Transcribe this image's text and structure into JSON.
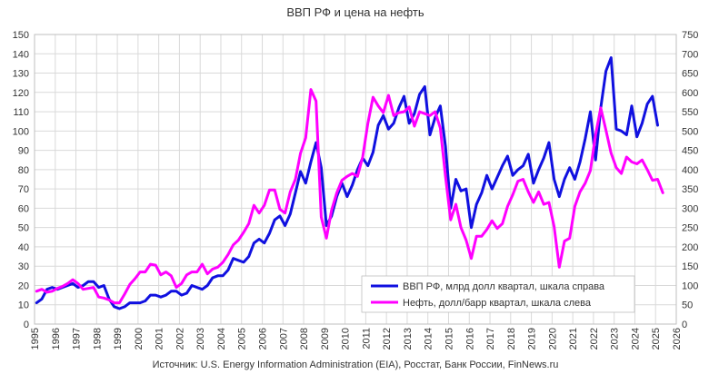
{
  "chart_data": {
    "type": "line",
    "title": "ВВП РФ и цена на нефть",
    "source": "Источник: U.S. Energy Information Administration (EIA), Росстат, Банк России, FinNews.ru",
    "grid": true,
    "legend_position": "bottom-right",
    "x_axis": {
      "ticks": [
        "1995",
        "1996",
        "1997",
        "1998",
        "1999",
        "2000",
        "2001",
        "2002",
        "2003",
        "2004",
        "2005",
        "2006",
        "2007",
        "2008",
        "2009",
        "2010",
        "2011",
        "2012",
        "2013",
        "2014",
        "2015",
        "2016",
        "2017",
        "2018",
        "2019",
        "2020",
        "2021",
        "2022",
        "2023",
        "2024",
        "2025",
        "2026"
      ],
      "range": [
        1995,
        2026
      ]
    },
    "y_left": {
      "ticks": [
        "0",
        "10",
        "20",
        "30",
        "40",
        "50",
        "60",
        "70",
        "80",
        "90",
        "100",
        "110",
        "120",
        "130",
        "140",
        "150"
      ],
      "range": [
        0,
        150
      ]
    },
    "y_right": {
      "ticks": [
        "0",
        "50",
        "100",
        "150",
        "200",
        "250",
        "300",
        "350",
        "400",
        "450",
        "500",
        "550",
        "600",
        "650",
        "700",
        "750"
      ],
      "range": [
        0,
        750
      ]
    },
    "series": [
      {
        "name": "ВВП РФ, млрд долл квартал, шкала справа",
        "axis": "right",
        "color": "#1010e0",
        "points": [
          [
            1995.1,
            55
          ],
          [
            1995.35,
            65
          ],
          [
            1995.6,
            90
          ],
          [
            1995.85,
            95
          ],
          [
            1996.1,
            90
          ],
          [
            1996.35,
            95
          ],
          [
            1996.6,
            100
          ],
          [
            1996.85,
            105
          ],
          [
            1997.1,
            95
          ],
          [
            1997.35,
            100
          ],
          [
            1997.6,
            110
          ],
          [
            1997.85,
            110
          ],
          [
            1998.1,
            95
          ],
          [
            1998.35,
            100
          ],
          [
            1998.6,
            65
          ],
          [
            1998.85,
            45
          ],
          [
            1999.1,
            40
          ],
          [
            1999.35,
            45
          ],
          [
            1999.6,
            55
          ],
          [
            1999.85,
            55
          ],
          [
            2000.1,
            55
          ],
          [
            2000.35,
            60
          ],
          [
            2000.6,
            75
          ],
          [
            2000.85,
            75
          ],
          [
            2001.1,
            70
          ],
          [
            2001.35,
            75
          ],
          [
            2001.6,
            85
          ],
          [
            2001.85,
            85
          ],
          [
            2002.1,
            75
          ],
          [
            2002.35,
            80
          ],
          [
            2002.6,
            100
          ],
          [
            2002.85,
            95
          ],
          [
            2003.1,
            90
          ],
          [
            2003.35,
            100
          ],
          [
            2003.6,
            120
          ],
          [
            2003.85,
            125
          ],
          [
            2004.1,
            125
          ],
          [
            2004.35,
            140
          ],
          [
            2004.6,
            170
          ],
          [
            2004.85,
            165
          ],
          [
            2005.1,
            160
          ],
          [
            2005.35,
            175
          ],
          [
            2005.6,
            210
          ],
          [
            2005.85,
            220
          ],
          [
            2006.1,
            210
          ],
          [
            2006.35,
            235
          ],
          [
            2006.6,
            270
          ],
          [
            2006.85,
            280
          ],
          [
            2007.1,
            255
          ],
          [
            2007.35,
            285
          ],
          [
            2007.6,
            340
          ],
          [
            2007.85,
            395
          ],
          [
            2008.1,
            365
          ],
          [
            2008.35,
            420
          ],
          [
            2008.6,
            470
          ],
          [
            2008.85,
            405
          ],
          [
            2009.1,
            255
          ],
          [
            2009.35,
            280
          ],
          [
            2009.6,
            330
          ],
          [
            2009.85,
            365
          ],
          [
            2010.1,
            330
          ],
          [
            2010.35,
            360
          ],
          [
            2010.6,
            400
          ],
          [
            2010.85,
            430
          ],
          [
            2011.1,
            410
          ],
          [
            2011.35,
            445
          ],
          [
            2011.6,
            515
          ],
          [
            2011.85,
            540
          ],
          [
            2012.1,
            505
          ],
          [
            2012.35,
            520
          ],
          [
            2012.6,
            560
          ],
          [
            2012.85,
            590
          ],
          [
            2013.1,
            520
          ],
          [
            2013.35,
            545
          ],
          [
            2013.6,
            595
          ],
          [
            2013.85,
            615
          ],
          [
            2014.1,
            490
          ],
          [
            2014.35,
            535
          ],
          [
            2014.6,
            565
          ],
          [
            2014.85,
            460
          ],
          [
            2015.1,
            300
          ],
          [
            2015.35,
            375
          ],
          [
            2015.6,
            345
          ],
          [
            2015.85,
            350
          ],
          [
            2016.1,
            250
          ],
          [
            2016.35,
            310
          ],
          [
            2016.6,
            340
          ],
          [
            2016.85,
            385
          ],
          [
            2017.1,
            350
          ],
          [
            2017.35,
            380
          ],
          [
            2017.6,
            410
          ],
          [
            2017.85,
            435
          ],
          [
            2018.1,
            385
          ],
          [
            2018.35,
            400
          ],
          [
            2018.6,
            410
          ],
          [
            2018.85,
            440
          ],
          [
            2019.1,
            365
          ],
          [
            2019.35,
            400
          ],
          [
            2019.6,
            430
          ],
          [
            2019.85,
            470
          ],
          [
            2020.1,
            375
          ],
          [
            2020.35,
            330
          ],
          [
            2020.6,
            375
          ],
          [
            2020.85,
            405
          ],
          [
            2021.1,
            375
          ],
          [
            2021.35,
            420
          ],
          [
            2021.6,
            480
          ],
          [
            2021.85,
            550
          ],
          [
            2022.1,
            425
          ],
          [
            2022.35,
            560
          ],
          [
            2022.6,
            655
          ],
          [
            2022.85,
            690
          ],
          [
            2023.1,
            505
          ],
          [
            2023.35,
            500
          ],
          [
            2023.6,
            490
          ],
          [
            2023.85,
            565
          ],
          [
            2024.1,
            485
          ],
          [
            2024.35,
            520
          ],
          [
            2024.6,
            570
          ],
          [
            2024.85,
            590
          ],
          [
            2025.1,
            515
          ]
        ]
      },
      {
        "name": "Нефть, долл/барр квартал, шкала слева",
        "axis": "left",
        "color": "#ff00ff",
        "points": [
          [
            1995.1,
            17
          ],
          [
            1995.35,
            18
          ],
          [
            1995.6,
            16.5
          ],
          [
            1995.85,
            17
          ],
          [
            1996.1,
            18.5
          ],
          [
            1996.35,
            19.5
          ],
          [
            1996.6,
            21
          ],
          [
            1996.85,
            23
          ],
          [
            1997.1,
            21
          ],
          [
            1997.35,
            18
          ],
          [
            1997.6,
            18.5
          ],
          [
            1997.85,
            19
          ],
          [
            1998.1,
            14
          ],
          [
            1998.35,
            13.5
          ],
          [
            1998.6,
            12.5
          ],
          [
            1998.85,
            11
          ],
          [
            1999.1,
            11
          ],
          [
            1999.35,
            15.5
          ],
          [
            1999.6,
            20.5
          ],
          [
            1999.85,
            23.5
          ],
          [
            2000.1,
            27
          ],
          [
            2000.35,
            27
          ],
          [
            2000.6,
            31
          ],
          [
            2000.85,
            30.5
          ],
          [
            2001.1,
            25.5
          ],
          [
            2001.35,
            27
          ],
          [
            2001.6,
            25
          ],
          [
            2001.85,
            19
          ],
          [
            2002.1,
            21
          ],
          [
            2002.35,
            25.5
          ],
          [
            2002.6,
            27
          ],
          [
            2002.85,
            27
          ],
          [
            2003.1,
            31
          ],
          [
            2003.35,
            26
          ],
          [
            2003.6,
            28.5
          ],
          [
            2003.85,
            29.5
          ],
          [
            2004.1,
            32
          ],
          [
            2004.35,
            36
          ],
          [
            2004.6,
            41
          ],
          [
            2004.85,
            43.5
          ],
          [
            2005.1,
            47.5
          ],
          [
            2005.35,
            52
          ],
          [
            2005.6,
            61.5
          ],
          [
            2005.85,
            57.5
          ],
          [
            2006.1,
            61.5
          ],
          [
            2006.35,
            69.5
          ],
          [
            2006.6,
            69.5
          ],
          [
            2006.85,
            59.5
          ],
          [
            2007.1,
            57.5
          ],
          [
            2007.35,
            68.5
          ],
          [
            2007.6,
            75
          ],
          [
            2007.85,
            88.5
          ],
          [
            2008.1,
            96.5
          ],
          [
            2008.35,
            121.5
          ],
          [
            2008.6,
            115.5
          ],
          [
            2008.85,
            55.5
          ],
          [
            2009.1,
            44.5
          ],
          [
            2009.35,
            59
          ],
          [
            2009.6,
            68
          ],
          [
            2009.85,
            74.5
          ],
          [
            2010.1,
            76.5
          ],
          [
            2010.35,
            78
          ],
          [
            2010.6,
            76.5
          ],
          [
            2010.85,
            86.5
          ],
          [
            2011.1,
            104
          ],
          [
            2011.35,
            117.5
          ],
          [
            2011.6,
            113
          ],
          [
            2011.85,
            109.5
          ],
          [
            2012.1,
            118.5
          ],
          [
            2012.35,
            108
          ],
          [
            2012.6,
            109.5
          ],
          [
            2012.85,
            110
          ],
          [
            2013.1,
            112.5
          ],
          [
            2013.35,
            102.5
          ],
          [
            2013.6,
            110
          ],
          [
            2013.85,
            109
          ],
          [
            2014.1,
            108
          ],
          [
            2014.35,
            110
          ],
          [
            2014.6,
            101.5
          ],
          [
            2014.85,
            76.5
          ],
          [
            2015.1,
            54
          ],
          [
            2015.35,
            62
          ],
          [
            2015.6,
            50
          ],
          [
            2015.85,
            43.5
          ],
          [
            2016.1,
            34
          ],
          [
            2016.35,
            45.5
          ],
          [
            2016.6,
            45.5
          ],
          [
            2016.85,
            49
          ],
          [
            2017.1,
            53.5
          ],
          [
            2017.35,
            49.5
          ],
          [
            2017.6,
            52
          ],
          [
            2017.85,
            61
          ],
          [
            2018.1,
            67
          ],
          [
            2018.35,
            74
          ],
          [
            2018.6,
            75
          ],
          [
            2018.85,
            68.5
          ],
          [
            2019.1,
            63
          ],
          [
            2019.35,
            68.5
          ],
          [
            2019.6,
            62
          ],
          [
            2019.85,
            63
          ],
          [
            2020.1,
            50.5
          ],
          [
            2020.35,
            29.5
          ],
          [
            2020.6,
            43
          ],
          [
            2020.85,
            44.5
          ],
          [
            2021.1,
            61
          ],
          [
            2021.35,
            68.5
          ],
          [
            2021.6,
            73
          ],
          [
            2021.85,
            79.5
          ],
          [
            2022.1,
            98
          ],
          [
            2022.35,
            112
          ],
          [
            2022.6,
            100.5
          ],
          [
            2022.85,
            88.5
          ],
          [
            2023.1,
            81
          ],
          [
            2023.35,
            78
          ],
          [
            2023.6,
            86.5
          ],
          [
            2023.85,
            84
          ],
          [
            2024.1,
            83
          ],
          [
            2024.35,
            85
          ],
          [
            2024.6,
            80
          ],
          [
            2024.85,
            74.5
          ],
          [
            2025.1,
            75
          ],
          [
            2025.35,
            68
          ]
        ]
      }
    ]
  }
}
